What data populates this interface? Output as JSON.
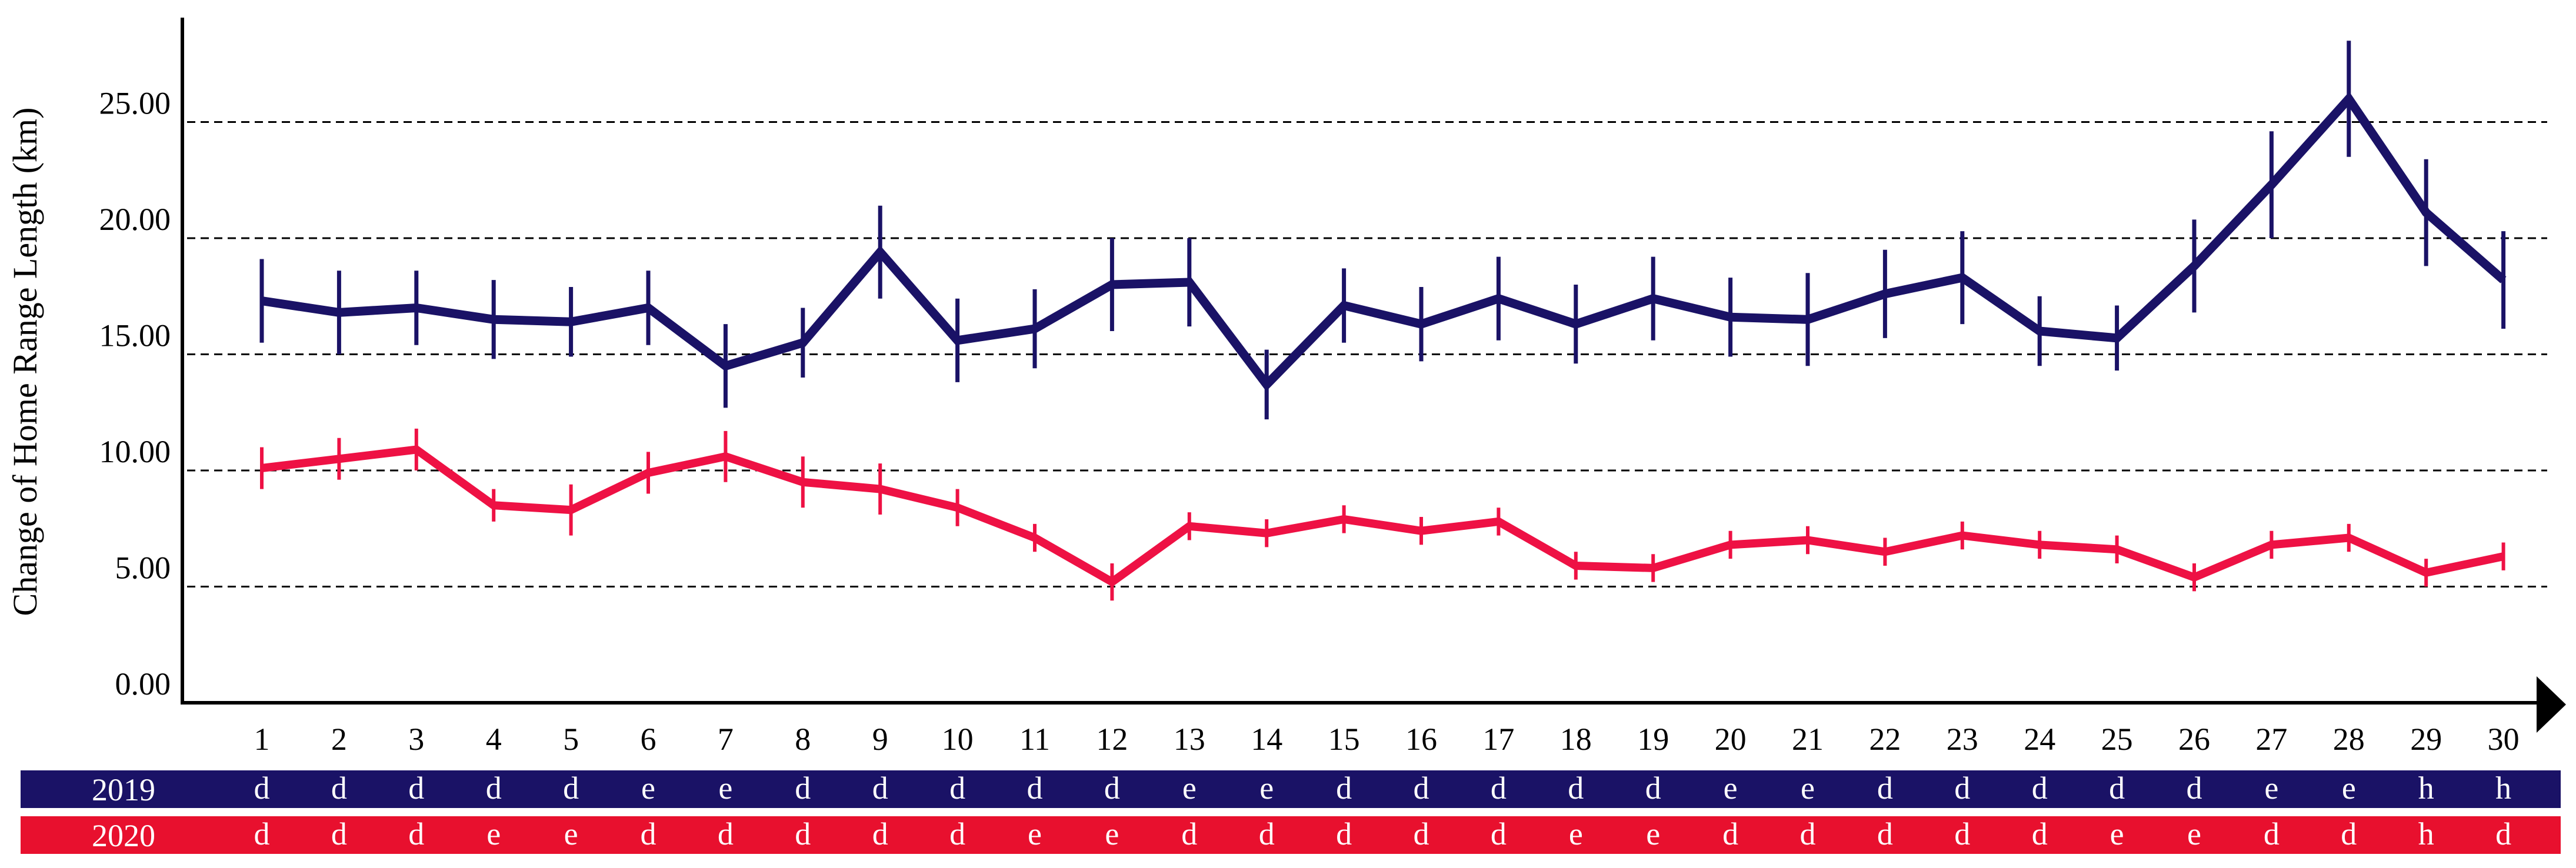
{
  "chart_data": {
    "type": "line",
    "title": "",
    "xlabel": "",
    "ylabel": "Change of Home Range Length (km)",
    "ylim": [
      0,
      29.5
    ],
    "yticks": [
      "0.00",
      "5.00",
      "10.00",
      "15.00",
      "20.00",
      "25.00"
    ],
    "grid": "horizontal dashed at 5.00, 10.00, 15.00, 20.00, 25.00",
    "legend": "none",
    "categories": [
      "1",
      "2",
      "3",
      "4",
      "5",
      "6",
      "7",
      "8",
      "9",
      "10",
      "11",
      "12",
      "13",
      "14",
      "15",
      "16",
      "17",
      "18",
      "19",
      "20",
      "21",
      "22",
      "23",
      "24",
      "25",
      "26",
      "27",
      "28",
      "29",
      "30"
    ],
    "series": [
      {
        "name": "2019",
        "color": "#1a1266",
        "values": [
          17.3,
          16.8,
          17.0,
          16.5,
          16.4,
          17.0,
          14.5,
          15.5,
          19.4,
          15.6,
          16.1,
          18.0,
          18.1,
          13.7,
          17.1,
          16.3,
          17.4,
          16.3,
          17.4,
          16.6,
          16.5,
          17.6,
          18.3,
          16.0,
          15.7,
          18.8,
          22.3,
          26.0,
          21.1,
          18.2
        ],
        "errors": [
          1.8,
          1.8,
          1.6,
          1.7,
          1.5,
          1.6,
          1.8,
          1.5,
          2.0,
          1.8,
          1.7,
          2.0,
          1.9,
          1.5,
          1.6,
          1.6,
          1.8,
          1.7,
          1.8,
          1.7,
          2.0,
          1.9,
          2.0,
          1.5,
          1.4,
          2.0,
          2.3,
          2.5,
          2.3,
          2.1
        ]
      },
      {
        "name": "2020",
        "color": "#ee1144",
        "values": [
          10.1,
          10.5,
          10.9,
          8.5,
          8.3,
          9.9,
          10.6,
          9.5,
          9.2,
          8.4,
          7.1,
          5.2,
          7.6,
          7.3,
          7.9,
          7.4,
          7.8,
          5.9,
          5.8,
          6.8,
          7.0,
          6.5,
          7.2,
          6.8,
          6.6,
          5.4,
          6.8,
          7.1,
          5.6,
          6.3
        ],
        "errors": [
          0.9,
          0.9,
          0.9,
          0.7,
          1.1,
          0.9,
          1.1,
          1.1,
          1.1,
          0.8,
          0.6,
          0.8,
          0.6,
          0.6,
          0.6,
          0.6,
          0.6,
          0.6,
          0.6,
          0.6,
          0.6,
          0.6,
          0.6,
          0.6,
          0.6,
          0.6,
          0.6,
          0.6,
          0.6,
          0.6
        ]
      }
    ],
    "bands": [
      {
        "label": "2019",
        "color": "#1a1266",
        "letters": [
          "d",
          "d",
          "d",
          "d",
          "d",
          "e",
          "e",
          "d",
          "d",
          "d",
          "d",
          "d",
          "e",
          "e",
          "d",
          "d",
          "d",
          "d",
          "d",
          "e",
          "e",
          "d",
          "d",
          "d",
          "d",
          "d",
          "e",
          "e",
          "h",
          "h"
        ]
      },
      {
        "label": "2020",
        "color": "#e8102e",
        "letters": [
          "d",
          "d",
          "d",
          "e",
          "e",
          "d",
          "d",
          "d",
          "d",
          "d",
          "e",
          "e",
          "d",
          "d",
          "d",
          "d",
          "d",
          "e",
          "e",
          "d",
          "d",
          "d",
          "d",
          "d",
          "e",
          "e",
          "d",
          "d",
          "h",
          "d"
        ]
      }
    ]
  }
}
